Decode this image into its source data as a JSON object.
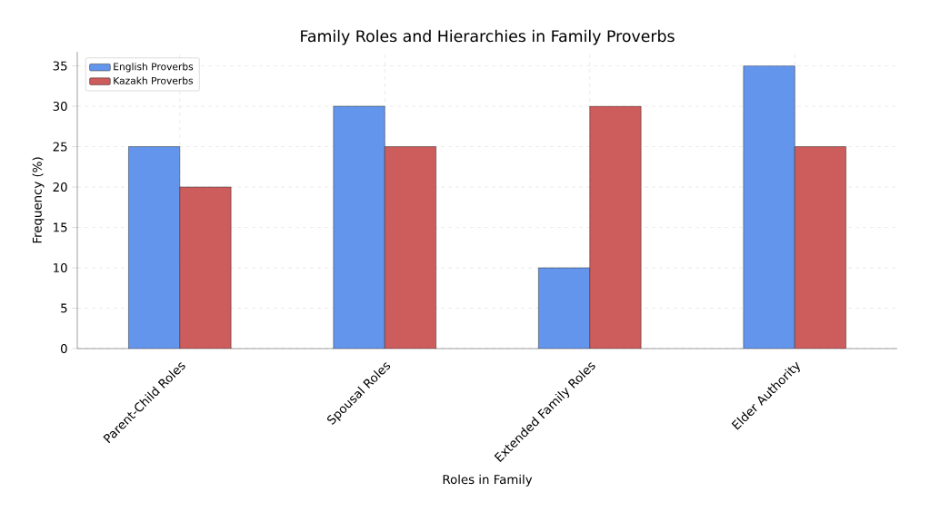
{
  "chart_data": {
    "type": "bar",
    "title": "Family Roles and Hierarchies in Family Proverbs",
    "xlabel": "Roles in Family",
    "ylabel": "Frequency (%)",
    "categories": [
      "Parent-Child Roles",
      "Spousal Roles",
      "Extended Family Roles",
      "Elder Authority"
    ],
    "series": [
      {
        "name": "English Proverbs",
        "color": "#6495ed",
        "values": [
          25,
          30,
          10,
          35
        ]
      },
      {
        "name": "Kazakh Proverbs",
        "color": "#cd5c5c",
        "values": [
          20,
          25,
          30,
          25
        ]
      }
    ],
    "ylim": [
      0,
      36.75
    ],
    "yticks": [
      0,
      5,
      10,
      15,
      20,
      25,
      30,
      35
    ],
    "grid": true,
    "legend": "top left"
  }
}
